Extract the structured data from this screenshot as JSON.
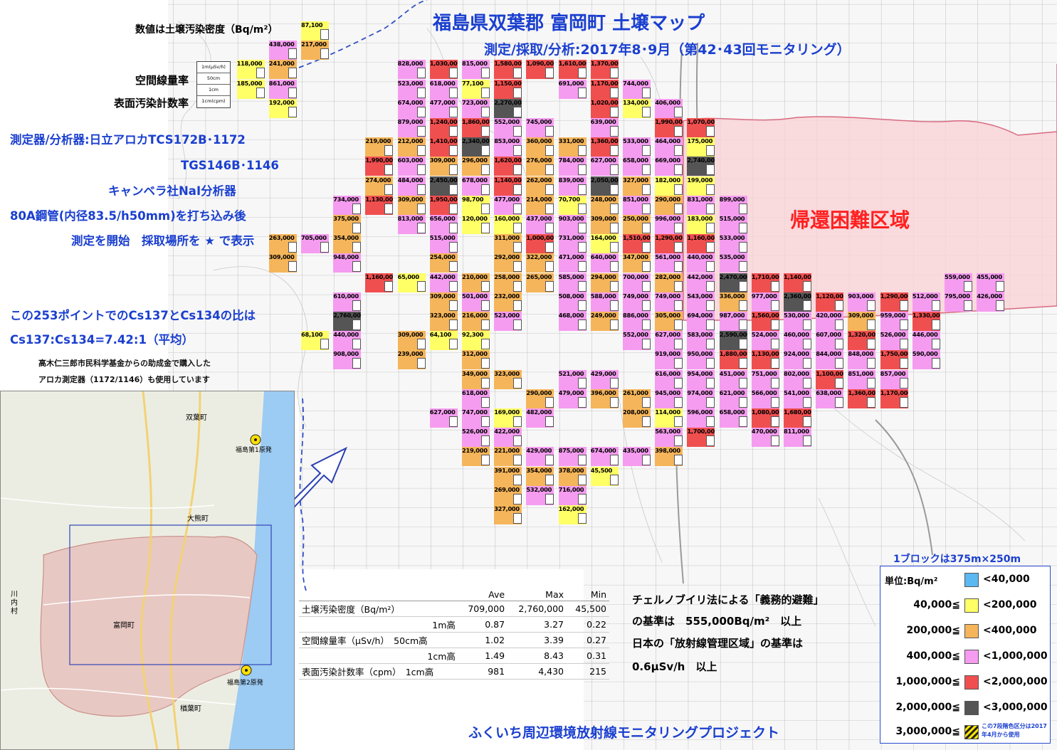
{
  "title": "福島県双葉郡 富岡町 土壌マップ",
  "subtitle": "測定/採取/分析:2017年8･9月（第42･43回モニタリング）",
  "left_notes": {
    "unit_note": "数値は土壌汚染密度（Bq/m²）",
    "air_dose": "空間線量率",
    "surface": "表面汚染計数率",
    "key_1m": "1m(μSv/h)",
    "key_50cm": "50cm",
    "key_1cm": "1cm",
    "key_cpm": "1cm(cpm)",
    "instrument_1": "測定器/分析器:日立アロカTCS172B･1172",
    "instrument_2": "TGS146B･1146",
    "instrument_3": "キャンベラ社NaI分析器",
    "method_1": "80A鋼管(内径83.5/h50mm)を打ち込み後",
    "method_2": "測定を開始　採取場所を ★ で表示",
    "ratio_1": "この253ポイントでのCs137とCs134の比は",
    "ratio_2": "Cs137:Cs134=7.42:1（平均）",
    "grant_1": "高木仁三郎市民科学基金からの助成金で購入した",
    "grant_2": "アロカ測定器（1172/1146）も使用しています"
  },
  "zone_label": "帰還困難区域",
  "chernobyl": {
    "line1": "チェルノブイリ法による「義務的避難」",
    "line2": "の基準は　555,000Bq/m²　以上",
    "line3": "日本の「放射線管理区域」の基準は",
    "line4": "0.6μSv/h　以上"
  },
  "project": "ふくいち周辺環境放射線モニタリングプロジェクト",
  "block_size": "1ブロックは375m×250m",
  "stats": {
    "headers": [
      "",
      "Ave",
      "Max",
      "Min"
    ],
    "rows": [
      [
        "土壌汚染密度（Bq/m²）",
        "709,000",
        "2,760,000",
        "45,500"
      ],
      [
        "1m高",
        "0.87",
        "3.27",
        "0.22"
      ],
      [
        "空間線量率（μSv/h）　50cm高",
        "1.02",
        "3.39",
        "0.27"
      ],
      [
        "1cm高",
        "1.49",
        "8.43",
        "0.31"
      ],
      [
        "表面汚染計数率（cpm）　1cm高",
        "981",
        "4,430",
        "215"
      ]
    ]
  },
  "legend": {
    "unit": "単位:Bq/m²",
    "note": "この7段階色区分は2017年4月から使用",
    "rows": [
      {
        "low": "",
        "high": "<40,000",
        "color": "#5bb8f0"
      },
      {
        "low": "40,000≦",
        "high": "<200,000",
        "color": "#ffff66"
      },
      {
        "low": "200,000≦",
        "high": "<400,000",
        "color": "#f5b55a"
      },
      {
        "low": "400,000≦",
        "high": "<1,000,000",
        "color": "#f59cf0"
      },
      {
        "low": "1,000,000≦",
        "high": "<2,000,000",
        "color": "#f04f4f"
      },
      {
        "low": "2,000,000≦",
        "high": "<3,000,000",
        "color": "#555555"
      },
      {
        "low": "3,000,000≦",
        "high": "",
        "color": "hatch"
      }
    ]
  },
  "inset_map": {
    "labels": [
      "双葉町",
      "福島第1原発",
      "大熊町",
      "川内村",
      "富岡町",
      "福島第2原発",
      "楢葉町"
    ]
  },
  "cells": [
    [
      "87,100",
      "#ffff66"
    ],
    [
      "438,000",
      "#f59cf0"
    ],
    [
      "217,000",
      "#f5b55a"
    ],
    [
      "118,000",
      "#ffff66"
    ],
    [
      "241,000",
      "#f5b55a"
    ],
    [
      "185,000",
      "#ffff66"
    ],
    [
      "861,000",
      "#f59cf0"
    ],
    [
      "192,000",
      "#ffff66"
    ],
    [
      "828,000",
      "#f59cf0"
    ],
    [
      "1,030,000",
      "#f04f4f"
    ],
    [
      "815,000",
      "#f59cf0"
    ],
    [
      "1,580,000",
      "#f04f4f"
    ],
    [
      "1,090,000",
      "#f04f4f"
    ],
    [
      "1,610,000",
      "#f04f4f"
    ],
    [
      "1,370,000",
      "#f04f4f"
    ],
    [
      "523,000",
      "#f59cf0"
    ],
    [
      "618,000",
      "#f59cf0"
    ],
    [
      "77,100",
      "#ffff66"
    ],
    [
      "1,150,000",
      "#f04f4f"
    ],
    [
      "691,000",
      "#f59cf0"
    ],
    [
      "1,170,000",
      "#f04f4f"
    ],
    [
      "744,000",
      "#f59cf0"
    ],
    [
      "674,000",
      "#f59cf0"
    ],
    [
      "477,000",
      "#f59cf0"
    ],
    [
      "723,000",
      "#f59cf0"
    ],
    [
      "2,270,000",
      "#555555"
    ],
    [
      "1,020,000",
      "#f04f4f"
    ],
    [
      "134,000",
      "#ffff66"
    ],
    [
      "406,000",
      "#f59cf0"
    ],
    [
      "879,000",
      "#f59cf0"
    ],
    [
      "1,240,000",
      "#f04f4f"
    ],
    [
      "1,860,000",
      "#f04f4f"
    ],
    [
      "552,000",
      "#f59cf0"
    ],
    [
      "745,000",
      "#f59cf0"
    ],
    [
      "639,000",
      "#f59cf0"
    ],
    [
      "1,990,000",
      "#f04f4f"
    ],
    [
      "1,070,000",
      "#f04f4f"
    ],
    [
      "219,000",
      "#f5b55a"
    ],
    [
      "212,000",
      "#f5b55a"
    ],
    [
      "1,410,000",
      "#f04f4f"
    ],
    [
      "2,340,000",
      "#555555"
    ],
    [
      "853,000",
      "#f59cf0"
    ],
    [
      "360,000",
      "#f5b55a"
    ],
    [
      "331,000",
      "#f5b55a"
    ],
    [
      "1,360,000",
      "#f04f4f"
    ],
    [
      "533,000",
      "#f59cf0"
    ],
    [
      "464,000",
      "#f59cf0"
    ],
    [
      "175,000",
      "#ffff66"
    ],
    [
      "1,990,000",
      "#f04f4f"
    ],
    [
      "603,000",
      "#f59cf0"
    ],
    [
      "309,000",
      "#f5b55a"
    ],
    [
      "296,000",
      "#f5b55a"
    ],
    [
      "1,620,000",
      "#f04f4f"
    ],
    [
      "276,000",
      "#f5b55a"
    ],
    [
      "784,000",
      "#f59cf0"
    ],
    [
      "627,000",
      "#f59cf0"
    ],
    [
      "658,000",
      "#f59cf0"
    ],
    [
      "669,000",
      "#f59cf0"
    ],
    [
      "2,740,000",
      "#555555"
    ],
    [
      "274,000",
      "#f5b55a"
    ],
    [
      "484,000",
      "#f59cf0"
    ],
    [
      "2,450,000",
      "#555555"
    ],
    [
      "678,000",
      "#f59cf0"
    ],
    [
      "1,140,000",
      "#f04f4f"
    ],
    [
      "262,000",
      "#f5b55a"
    ],
    [
      "839,000",
      "#f59cf0"
    ],
    [
      "2,050,000",
      "#555555"
    ],
    [
      "327,000",
      "#f5b55a"
    ],
    [
      "182,000",
      "#ffff66"
    ],
    [
      "199,000",
      "#ffff66"
    ],
    [
      "734,000",
      "#f59cf0"
    ],
    [
      "1,130,000",
      "#f04f4f"
    ],
    [
      "309,000",
      "#f5b55a"
    ],
    [
      "1,950,000",
      "#f04f4f"
    ],
    [
      "98,700",
      "#ffff66"
    ],
    [
      "477,000",
      "#f59cf0"
    ],
    [
      "214,000",
      "#f5b55a"
    ],
    [
      "70,700",
      "#ffff66"
    ],
    [
      "248,000",
      "#f5b55a"
    ],
    [
      "851,000",
      "#f59cf0"
    ],
    [
      "290,000",
      "#f5b55a"
    ],
    [
      "831,000",
      "#f59cf0"
    ],
    [
      "899,000",
      "#f59cf0"
    ],
    [
      "375,000",
      "#f5b55a"
    ],
    [
      "813,000",
      "#f59cf0"
    ],
    [
      "656,000",
      "#f59cf0"
    ],
    [
      "120,000",
      "#ffff66"
    ],
    [
      "160,000",
      "#ffff66"
    ],
    [
      "437,000",
      "#f59cf0"
    ],
    [
      "903,000",
      "#f59cf0"
    ],
    [
      "309,000",
      "#f5b55a"
    ],
    [
      "250,000",
      "#f5b55a"
    ],
    [
      "996,000",
      "#f59cf0"
    ],
    [
      "183,000",
      "#ffff66"
    ],
    [
      "515,000",
      "#f59cf0"
    ],
    [
      "263,000",
      "#f5b55a"
    ],
    [
      "705,000",
      "#f59cf0"
    ],
    [
      "354,000",
      "#f5b55a"
    ],
    [
      "515,000",
      "#f59cf0"
    ],
    [
      "311,000",
      "#f5b55a"
    ],
    [
      "1,000,000",
      "#f04f4f"
    ],
    [
      "731,000",
      "#f59cf0"
    ],
    [
      "164,000",
      "#ffff66"
    ],
    [
      "1,510,000",
      "#f04f4f"
    ],
    [
      "1,290,000",
      "#f04f4f"
    ],
    [
      "1,160,000",
      "#f04f4f"
    ],
    [
      "533,000",
      "#f59cf0"
    ],
    [
      "309,000",
      "#f5b55a"
    ],
    [
      "948,000",
      "#f59cf0"
    ],
    [
      "254,000",
      "#f5b55a"
    ],
    [
      "292,000",
      "#f5b55a"
    ],
    [
      "322,000",
      "#f5b55a"
    ],
    [
      "471,000",
      "#f59cf0"
    ],
    [
      "640,000",
      "#f59cf0"
    ],
    [
      "347,000",
      "#f5b55a"
    ],
    [
      "561,000",
      "#f59cf0"
    ],
    [
      "440,000",
      "#f59cf0"
    ],
    [
      "535,000",
      "#f59cf0"
    ],
    [
      "1,160,000",
      "#f04f4f"
    ],
    [
      "65,000",
      "#ffff66"
    ],
    [
      "442,000",
      "#f59cf0"
    ],
    [
      "210,000",
      "#f5b55a"
    ],
    [
      "258,000",
      "#f5b55a"
    ],
    [
      "265,000",
      "#f5b55a"
    ],
    [
      "585,000",
      "#f59cf0"
    ],
    [
      "294,000",
      "#f5b55a"
    ],
    [
      "700,000",
      "#f59cf0"
    ],
    [
      "282,000",
      "#f5b55a"
    ],
    [
      "442,000",
      "#f59cf0"
    ],
    [
      "2,470,000",
      "#555555"
    ],
    [
      "1,710,000",
      "#f04f4f"
    ],
    [
      "1,140,000",
      "#f04f4f"
    ],
    [
      "559,000",
      "#f59cf0"
    ],
    [
      "455,000",
      "#f59cf0"
    ],
    [
      "610,000",
      "#f59cf0"
    ],
    [
      "309,000",
      "#f5b55a"
    ],
    [
      "501,000",
      "#f59cf0"
    ],
    [
      "232,000",
      "#f5b55a"
    ],
    [
      "508,000",
      "#f59cf0"
    ],
    [
      "588,000",
      "#f59cf0"
    ],
    [
      "749,000",
      "#f59cf0"
    ],
    [
      "749,000",
      "#f59cf0"
    ],
    [
      "543,000",
      "#f59cf0"
    ],
    [
      "336,000",
      "#f5b55a"
    ],
    [
      "977,000",
      "#f59cf0"
    ],
    [
      "2,360,000",
      "#555555"
    ],
    [
      "1,120,000",
      "#f04f4f"
    ],
    [
      "903,000",
      "#f59cf0"
    ],
    [
      "1,290,000",
      "#f04f4f"
    ],
    [
      "512,000",
      "#f59cf0"
    ],
    [
      "795,000",
      "#f59cf0"
    ],
    [
      "426,000",
      "#f59cf0"
    ],
    [
      "2,760,000",
      "#555555"
    ],
    [
      "323,000",
      "#f5b55a"
    ],
    [
      "216,000",
      "#f5b55a"
    ],
    [
      "523,000",
      "#f59cf0"
    ],
    [
      "468,000",
      "#f59cf0"
    ],
    [
      "249,000",
      "#f5b55a"
    ],
    [
      "886,000",
      "#f59cf0"
    ],
    [
      "305,000",
      "#f5b55a"
    ],
    [
      "694,000",
      "#f59cf0"
    ],
    [
      "987,000",
      "#f59cf0"
    ],
    [
      "1,560,000",
      "#f04f4f"
    ],
    [
      "530,000",
      "#f59cf0"
    ],
    [
      "420,000",
      "#f59cf0"
    ],
    [
      "309,000",
      "#f5b55a"
    ],
    [
      "959,000",
      "#f59cf0"
    ],
    [
      "1,330,000",
      "#f04f4f"
    ],
    [
      "68,100",
      "#ffff66"
    ],
    [
      "440,000",
      "#f59cf0"
    ],
    [
      "309,000",
      "#f5b55a"
    ],
    [
      "64,100",
      "#ffff66"
    ],
    [
      "92,300",
      "#ffff66"
    ],
    [
      "552,000",
      "#f59cf0"
    ],
    [
      "627,000",
      "#f59cf0"
    ],
    [
      "583,000",
      "#f59cf0"
    ],
    [
      "2,590,000",
      "#555555"
    ],
    [
      "524,000",
      "#f59cf0"
    ],
    [
      "460,000",
      "#f59cf0"
    ],
    [
      "607,000",
      "#f59cf0"
    ],
    [
      "1,320,000",
      "#f04f4f"
    ],
    [
      "526,000",
      "#f59cf0"
    ],
    [
      "446,000",
      "#f59cf0"
    ],
    [
      "908,000",
      "#f59cf0"
    ],
    [
      "239,000",
      "#f5b55a"
    ],
    [
      "312,000",
      "#f5b55a"
    ],
    [
      "919,000",
      "#f59cf0"
    ],
    [
      "950,000",
      "#f59cf0"
    ],
    [
      "1,880,000",
      "#f04f4f"
    ],
    [
      "1,130,000",
      "#f04f4f"
    ],
    [
      "924,000",
      "#f59cf0"
    ],
    [
      "844,000",
      "#f59cf0"
    ],
    [
      "848,000",
      "#f59cf0"
    ],
    [
      "1,750,000",
      "#f04f4f"
    ],
    [
      "590,000",
      "#f59cf0"
    ],
    [
      "349,000",
      "#f5b55a"
    ],
    [
      "323,000",
      "#f5b55a"
    ],
    [
      "521,000",
      "#f59cf0"
    ],
    [
      "429,000",
      "#f59cf0"
    ],
    [
      "616,000",
      "#f59cf0"
    ],
    [
      "954,000",
      "#f59cf0"
    ],
    [
      "451,000",
      "#f59cf0"
    ],
    [
      "751,000",
      "#f59cf0"
    ],
    [
      "802,000",
      "#f59cf0"
    ],
    [
      "1,100,000",
      "#f04f4f"
    ],
    [
      "851,000",
      "#f59cf0"
    ],
    [
      "857,000",
      "#f59cf0"
    ],
    [
      "618,000",
      "#f59cf0"
    ],
    [
      "290,000",
      "#f5b55a"
    ],
    [
      "479,000",
      "#f59cf0"
    ],
    [
      "396,000",
      "#f5b55a"
    ],
    [
      "261,000",
      "#f5b55a"
    ],
    [
      "945,000",
      "#f59cf0"
    ],
    [
      "974,000",
      "#f59cf0"
    ],
    [
      "621,000",
      "#f59cf0"
    ],
    [
      "566,000",
      "#f59cf0"
    ],
    [
      "541,000",
      "#f59cf0"
    ],
    [
      "638,000",
      "#f59cf0"
    ],
    [
      "1,360,000",
      "#f04f4f"
    ],
    [
      "1,170,000",
      "#f04f4f"
    ],
    [
      "627,000",
      "#f59cf0"
    ],
    [
      "747,000",
      "#f59cf0"
    ],
    [
      "169,000",
      "#ffff66"
    ],
    [
      "482,000",
      "#f59cf0"
    ],
    [
      "208,000",
      "#f5b55a"
    ],
    [
      "114,000",
      "#ffff66"
    ],
    [
      "596,000",
      "#f59cf0"
    ],
    [
      "658,000",
      "#f59cf0"
    ],
    [
      "1,080,000",
      "#f04f4f"
    ],
    [
      "1,680,000",
      "#f04f4f"
    ],
    [
      "526,000",
      "#f59cf0"
    ],
    [
      "422,000",
      "#f59cf0"
    ],
    [
      "563,000",
      "#f59cf0"
    ],
    [
      "1,700,000",
      "#f04f4f"
    ],
    [
      "470,000",
      "#f59cf0"
    ],
    [
      "811,000",
      "#f59cf0"
    ],
    [
      "219,000",
      "#f5b55a"
    ],
    [
      "221,000",
      "#f5b55a"
    ],
    [
      "429,000",
      "#f59cf0"
    ],
    [
      "875,000",
      "#f59cf0"
    ],
    [
      "674,000",
      "#f59cf0"
    ],
    [
      "435,000",
      "#f59cf0"
    ],
    [
      "398,000",
      "#f5b55a"
    ],
    [
      "391,000",
      "#f5b55a"
    ],
    [
      "354,000",
      "#f5b55a"
    ],
    [
      "378,000",
      "#f5b55a"
    ],
    [
      "45,500",
      "#ffff66"
    ],
    [
      "269,000",
      "#f5b55a"
    ],
    [
      "532,000",
      "#f59cf0"
    ],
    [
      "716,000",
      "#f59cf0"
    ],
    [
      "327,000",
      "#f5b55a"
    ],
    [
      "162,000",
      "#ffff66"
    ]
  ]
}
